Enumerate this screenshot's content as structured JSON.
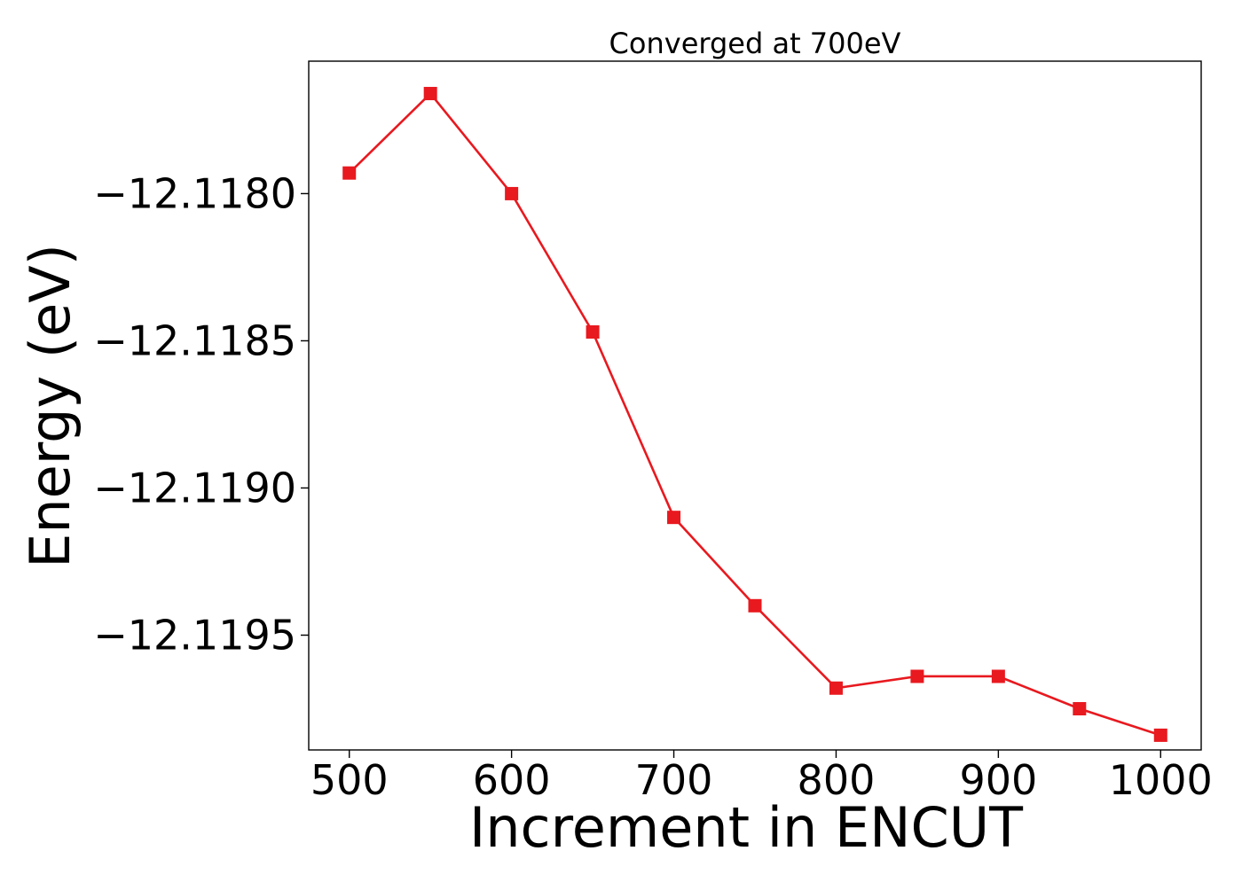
{
  "chart_data": {
    "type": "line",
    "title": "Converged at 700eV",
    "xlabel": "Increment in ENCUT",
    "ylabel": "Energy (eV)",
    "x": [
      500,
      550,
      600,
      650,
      700,
      750,
      800,
      850,
      900,
      950,
      1000
    ],
    "series": [
      {
        "values": [
          -12.11793,
          -12.11766,
          -12.118,
          -12.11847,
          -12.1191,
          -12.1194,
          -12.11968,
          -12.11964,
          -12.11964,
          -12.11975,
          -12.11984
        ],
        "color": "#e8191f",
        "marker": "square"
      }
    ],
    "xlim": [
      475,
      1025
    ],
    "ylim": [
      -12.11989,
      -12.11755
    ],
    "xticks": [
      500,
      600,
      700,
      800,
      900,
      1000
    ],
    "xtick_labels": [
      "500",
      "600",
      "700",
      "800",
      "900",
      "1000"
    ],
    "yticks": [
      -12.118,
      -12.1185,
      -12.119,
      -12.1195
    ],
    "ytick_labels": [
      "−12.1180",
      "−12.1185",
      "−12.1190",
      "−12.1195"
    ],
    "grid": false,
    "legend": "none"
  }
}
